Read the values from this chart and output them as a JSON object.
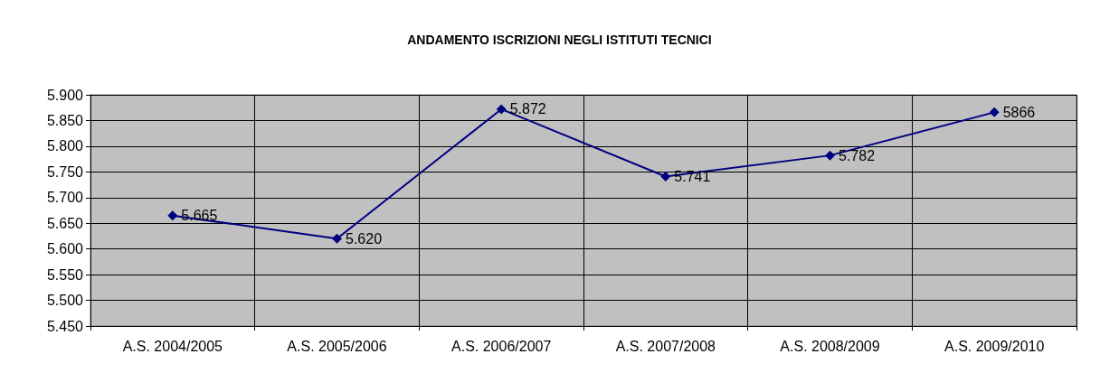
{
  "chart_data": {
    "type": "line",
    "title": "ANDAMENTO ISCRIZIONI NEGLI ISTITUTI TECNICI",
    "categories": [
      "A.S. 2004/2005",
      "A.S. 2005/2006",
      "A.S. 2006/2007",
      "A.S. 2007/2008",
      "A.S. 2008/2009",
      "A.S. 2009/2010"
    ],
    "series": [
      {
        "color": "#000080",
        "values": [
          5665,
          5620,
          5872,
          5741,
          5782,
          5866
        ],
        "value_labels": [
          "5.665",
          "5.620",
          "5.872",
          "5.741",
          "5.782",
          "5866"
        ]
      }
    ],
    "ylim": [
      5450,
      5900
    ],
    "yticks": [
      {
        "value": 5450,
        "label": "5.450"
      },
      {
        "value": 5500,
        "label": "5.500"
      },
      {
        "value": 5550,
        "label": "5.550"
      },
      {
        "value": 5600,
        "label": "5.600"
      },
      {
        "value": 5650,
        "label": "5.650"
      },
      {
        "value": 5700,
        "label": "5.700"
      },
      {
        "value": 5750,
        "label": "5.750"
      },
      {
        "value": 5800,
        "label": "5.800"
      },
      {
        "value": 5850,
        "label": "5.850"
      },
      {
        "value": 5900,
        "label": "5.900"
      }
    ],
    "grid": true,
    "marker": "diamond",
    "line_style": "solid"
  }
}
